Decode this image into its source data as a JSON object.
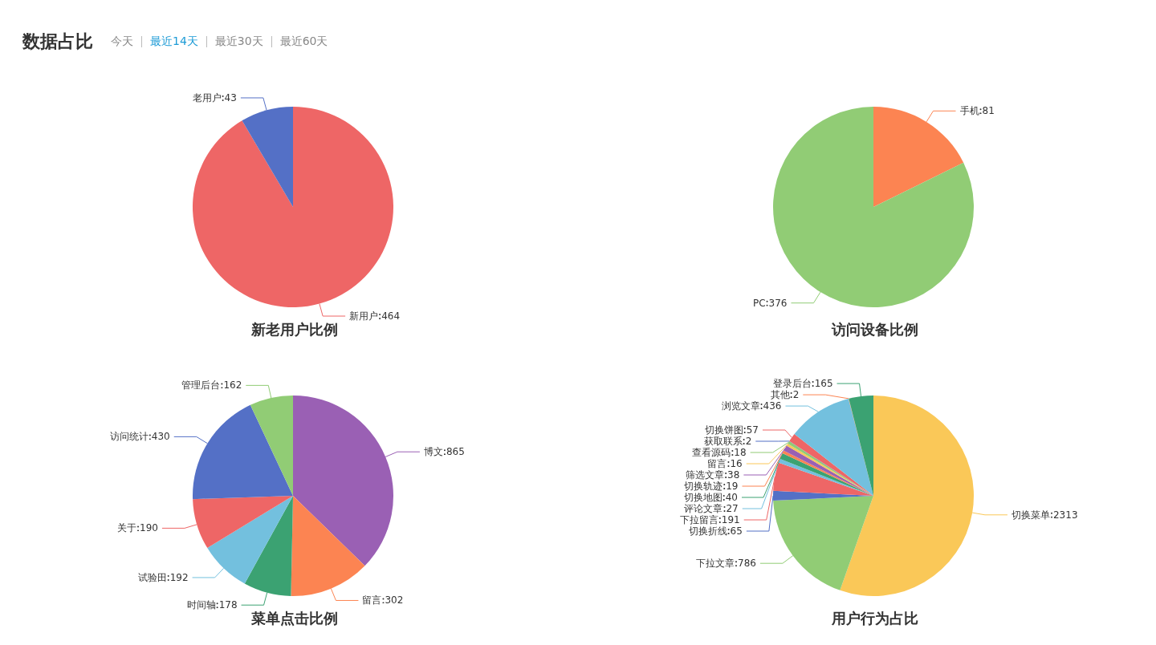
{
  "chart_data": [
    {
      "type": "other",
      "title": "数据占比",
      "annotations": [
        "今天",
        "最近14天",
        "最近30天",
        "最近60天"
      ]
    },
    {
      "type": "pie",
      "title": "新老用户比例",
      "categories": [
        "新用户",
        "老用户"
      ],
      "values": [
        464,
        43
      ],
      "colors": [
        "#ee6666",
        "#5470c6"
      ],
      "data_labels": true
    },
    {
      "type": "pie",
      "title": "访问设备比例",
      "categories": [
        "手机",
        "PC"
      ],
      "values": [
        81,
        376
      ],
      "colors": [
        "#fc8452",
        "#91cc75"
      ],
      "data_labels": true
    },
    {
      "type": "pie",
      "title": "菜单点击比例",
      "categories": [
        "博文",
        "留言",
        "时间轴",
        "试验田",
        "关于",
        "访问统计",
        "管理后台"
      ],
      "values": [
        865,
        302,
        178,
        192,
        190,
        430,
        162
      ],
      "colors": [
        "#9a60b4",
        "#fc8452",
        "#3ba272",
        "#73c0de",
        "#ee6666",
        "#5470c6",
        "#91cc75"
      ],
      "data_labels": true
    },
    {
      "type": "pie",
      "title": "用户行为占比",
      "categories": [
        "切换菜单",
        "下拉文章",
        "切换折线",
        "下拉留言",
        "评论文章",
        "切换地图",
        "切换轨迹",
        "筛选文章",
        "留言",
        "查看源码",
        "获取联系",
        "切换饼图",
        "浏览文章",
        "其他",
        "登录后台"
      ],
      "values": [
        2313,
        786,
        65,
        191,
        27,
        40,
        19,
        38,
        16,
        18,
        2,
        57,
        436,
        2,
        165
      ],
      "colors": [
        "#fac858",
        "#91cc75",
        "#5470c6",
        "#ee6666",
        "#73c0de",
        "#3ba272",
        "#fc8452",
        "#9a60b4",
        "#fac858",
        "#91cc75",
        "#5470c6",
        "#ee6666",
        "#73c0de",
        "#fc8452",
        "#3ba272"
      ],
      "data_labels": true
    }
  ]
}
